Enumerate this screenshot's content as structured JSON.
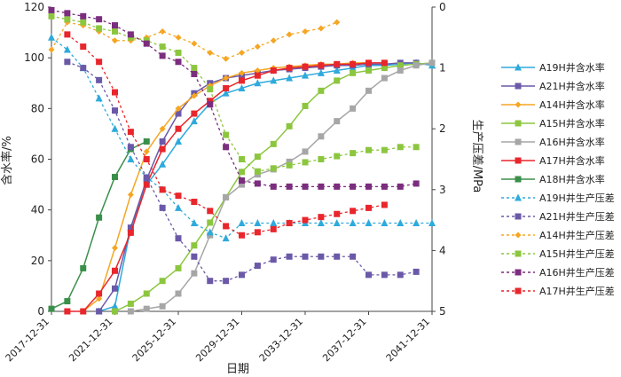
{
  "chart_data": {
    "type": "line",
    "title": "",
    "xlabel": "日期",
    "ylabel_left": "含水率/%",
    "ylabel_right": "生产压差/MPa",
    "x_domain": [
      2017.9,
      2041.9
    ],
    "ylim_left": [
      0,
      120
    ],
    "ylim_right": [
      0,
      5
    ],
    "right_axis_inverted": true,
    "x_ticks": [
      {
        "value": 2017.9,
        "label": "2017-12-31"
      },
      {
        "value": 2021.9,
        "label": "2021-12-31"
      },
      {
        "value": 2025.9,
        "label": "2025-12-31"
      },
      {
        "value": 2029.9,
        "label": "2029-12-31"
      },
      {
        "value": 2033.9,
        "label": "2033-12-31"
      },
      {
        "value": 2037.9,
        "label": "2037-12-31"
      },
      {
        "value": 2041.9,
        "label": "2041-12-31"
      }
    ],
    "y_left_ticks": [
      "0",
      "20",
      "40",
      "60",
      "80",
      "100",
      "120"
    ],
    "y_right_ticks": [
      "0",
      "1",
      "2",
      "3",
      "4",
      "5"
    ],
    "grid": false,
    "legend_position": "right",
    "series": [
      {
        "name": "A19H井含水率",
        "axis": "left",
        "color": "#2eaadc",
        "marker": "triangle",
        "dashed": false,
        "points": [
          [
            2020.9,
            0
          ],
          [
            2021.9,
            2
          ],
          [
            2022.9,
            33
          ],
          [
            2023.9,
            50
          ],
          [
            2024.9,
            58
          ],
          [
            2025.9,
            67
          ],
          [
            2026.9,
            75
          ],
          [
            2027.9,
            82
          ],
          [
            2028.9,
            86
          ],
          [
            2029.9,
            88
          ],
          [
            2030.9,
            90
          ],
          [
            2031.9,
            91
          ],
          [
            2032.9,
            92
          ],
          [
            2033.9,
            93
          ],
          [
            2034.9,
            94
          ],
          [
            2035.9,
            95
          ],
          [
            2036.9,
            96
          ],
          [
            2037.9,
            97
          ],
          [
            2038.9,
            97
          ],
          [
            2039.9,
            97.5
          ],
          [
            2040.9,
            98
          ],
          [
            2041.9,
            97
          ]
        ]
      },
      {
        "name": "A21H井含水率",
        "axis": "left",
        "color": "#6b59a8",
        "marker": "square",
        "dashed": false,
        "points": [
          [
            2020.9,
            0
          ],
          [
            2021.9,
            9
          ],
          [
            2022.9,
            33
          ],
          [
            2023.9,
            52
          ],
          [
            2024.9,
            67
          ],
          [
            2025.9,
            78
          ],
          [
            2026.9,
            86
          ],
          [
            2027.9,
            90
          ],
          [
            2028.9,
            92
          ],
          [
            2029.9,
            93
          ],
          [
            2030.9,
            94
          ],
          [
            2031.9,
            95
          ],
          [
            2032.9,
            95.5
          ],
          [
            2033.9,
            96
          ],
          [
            2034.9,
            96.5
          ],
          [
            2035.9,
            97
          ],
          [
            2036.9,
            97
          ],
          [
            2037.9,
            97.5
          ],
          [
            2038.9,
            97.5
          ],
          [
            2039.9,
            98
          ],
          [
            2040.9,
            98
          ]
        ]
      },
      {
        "name": "A14H井含水率",
        "axis": "left",
        "color": "#f5a623",
        "marker": "diamond",
        "dashed": false,
        "points": [
          [
            2019.9,
            0
          ],
          [
            2020.9,
            5
          ],
          [
            2021.9,
            25
          ],
          [
            2022.9,
            46
          ],
          [
            2023.9,
            63
          ],
          [
            2024.9,
            72
          ],
          [
            2025.9,
            80
          ],
          [
            2026.9,
            85
          ],
          [
            2027.9,
            89
          ],
          [
            2028.9,
            92
          ],
          [
            2029.9,
            94
          ],
          [
            2030.9,
            95
          ],
          [
            2031.9,
            96
          ],
          [
            2032.9,
            96.5
          ],
          [
            2033.9,
            97
          ],
          [
            2034.9,
            97.5
          ],
          [
            2035.9,
            97.5
          ],
          [
            2036.9,
            98
          ],
          [
            2037.9,
            98
          ]
        ]
      },
      {
        "name": "A15H井含水率",
        "axis": "left",
        "color": "#8cc63f",
        "marker": "square",
        "dashed": false,
        "points": [
          [
            2021.9,
            0
          ],
          [
            2022.9,
            3
          ],
          [
            2023.9,
            7
          ],
          [
            2024.9,
            12
          ],
          [
            2025.9,
            17
          ],
          [
            2026.9,
            26
          ],
          [
            2027.9,
            35
          ],
          [
            2028.9,
            45
          ],
          [
            2029.9,
            55
          ],
          [
            2030.9,
            61
          ],
          [
            2031.9,
            66
          ],
          [
            2032.9,
            73
          ],
          [
            2033.9,
            81
          ],
          [
            2034.9,
            87
          ],
          [
            2035.9,
            91
          ],
          [
            2036.9,
            94
          ],
          [
            2037.9,
            95
          ],
          [
            2038.9,
            96
          ],
          [
            2039.9,
            97
          ],
          [
            2040.9,
            97.5
          ],
          [
            2041.9,
            98
          ]
        ]
      },
      {
        "name": "A16H井含水率",
        "axis": "left",
        "color": "#a6a6a6",
        "marker": "square",
        "dashed": false,
        "points": [
          [
            2022.9,
            0
          ],
          [
            2023.9,
            1
          ],
          [
            2024.9,
            2
          ],
          [
            2025.9,
            7
          ],
          [
            2026.9,
            15
          ],
          [
            2027.9,
            30
          ],
          [
            2028.9,
            45
          ],
          [
            2029.9,
            50
          ],
          [
            2030.9,
            54
          ],
          [
            2031.9,
            56
          ],
          [
            2032.9,
            59
          ],
          [
            2033.9,
            63
          ],
          [
            2034.9,
            69
          ],
          [
            2035.9,
            75
          ],
          [
            2036.9,
            80
          ],
          [
            2037.9,
            87
          ],
          [
            2038.9,
            92
          ],
          [
            2039.9,
            95
          ],
          [
            2040.9,
            97
          ],
          [
            2041.9,
            98
          ]
        ]
      },
      {
        "name": "A17H井含水率",
        "axis": "left",
        "color": "#e8262c",
        "marker": "square",
        "dashed": false,
        "points": [
          [
            2018.9,
            0
          ],
          [
            2019.9,
            0
          ],
          [
            2020.9,
            7
          ],
          [
            2021.9,
            16
          ],
          [
            2022.9,
            31
          ],
          [
            2023.9,
            50
          ],
          [
            2024.9,
            64
          ],
          [
            2025.9,
            72
          ],
          [
            2026.9,
            78
          ],
          [
            2027.9,
            83
          ],
          [
            2028.9,
            88
          ],
          [
            2029.9,
            91
          ],
          [
            2030.9,
            93
          ],
          [
            2031.9,
            95
          ],
          [
            2032.9,
            96
          ],
          [
            2033.9,
            96.5
          ],
          [
            2034.9,
            97
          ],
          [
            2035.9,
            97.5
          ],
          [
            2036.9,
            97.5
          ],
          [
            2037.9,
            98
          ],
          [
            2038.9,
            98
          ]
        ]
      },
      {
        "name": "A18H井含水率",
        "axis": "left",
        "color": "#3a8f4a",
        "marker": "square",
        "dashed": false,
        "points": [
          [
            2017.9,
            1
          ],
          [
            2018.9,
            4
          ],
          [
            2019.9,
            17
          ],
          [
            2020.9,
            37
          ],
          [
            2021.9,
            53
          ],
          [
            2022.9,
            64
          ],
          [
            2023.9,
            67
          ]
        ]
      },
      {
        "name": "A19H井生产压差",
        "axis": "right",
        "color": "#2eaadc",
        "marker": "triangle",
        "dashed": true,
        "points": [
          [
            2017.9,
            0.5
          ],
          [
            2018.9,
            0.7
          ],
          [
            2019.9,
            1.0
          ],
          [
            2020.9,
            1.5
          ],
          [
            2021.9,
            2.0
          ],
          [
            2022.9,
            2.5
          ],
          [
            2023.9,
            2.8
          ],
          [
            2024.9,
            3.0
          ],
          [
            2025.9,
            3.3
          ],
          [
            2026.9,
            3.55
          ],
          [
            2027.9,
            3.7
          ],
          [
            2028.9,
            3.8
          ],
          [
            2029.9,
            3.55
          ],
          [
            2030.9,
            3.55
          ],
          [
            2031.9,
            3.55
          ],
          [
            2032.9,
            3.55
          ],
          [
            2033.9,
            3.55
          ],
          [
            2034.9,
            3.55
          ],
          [
            2035.9,
            3.55
          ],
          [
            2036.9,
            3.55
          ],
          [
            2037.9,
            3.55
          ],
          [
            2038.9,
            3.55
          ],
          [
            2039.9,
            3.55
          ],
          [
            2040.9,
            3.55
          ],
          [
            2041.9,
            3.55
          ]
        ]
      },
      {
        "name": "A21H井生产压差",
        "axis": "right",
        "color": "#6b59a8",
        "marker": "square",
        "dashed": true,
        "points": [
          [
            2018.9,
            0.9
          ],
          [
            2019.9,
            1.0
          ],
          [
            2020.9,
            1.2
          ],
          [
            2021.9,
            1.7
          ],
          [
            2022.9,
            2.3
          ],
          [
            2023.9,
            2.8
          ],
          [
            2024.9,
            3.3
          ],
          [
            2025.9,
            3.8
          ],
          [
            2026.9,
            4.1
          ],
          [
            2027.9,
            4.5
          ],
          [
            2028.9,
            4.5
          ],
          [
            2029.9,
            4.4
          ],
          [
            2030.9,
            4.25
          ],
          [
            2031.9,
            4.15
          ],
          [
            2032.9,
            4.1
          ],
          [
            2033.9,
            4.1
          ],
          [
            2034.9,
            4.1
          ],
          [
            2035.9,
            4.1
          ],
          [
            2036.9,
            4.1
          ],
          [
            2037.9,
            4.4
          ],
          [
            2038.9,
            4.4
          ],
          [
            2039.9,
            4.4
          ],
          [
            2040.9,
            4.35
          ]
        ]
      },
      {
        "name": "A14H井生产压差",
        "axis": "right",
        "color": "#f5a623",
        "marker": "diamond",
        "dashed": true,
        "points": [
          [
            2017.9,
            0.7
          ],
          [
            2018.9,
            0.25
          ],
          [
            2019.9,
            0.3
          ],
          [
            2020.9,
            0.4
          ],
          [
            2021.9,
            0.55
          ],
          [
            2022.9,
            0.55
          ],
          [
            2023.9,
            0.5
          ],
          [
            2024.9,
            0.4
          ],
          [
            2025.9,
            0.5
          ],
          [
            2026.9,
            0.6
          ],
          [
            2027.9,
            0.75
          ],
          [
            2028.9,
            0.85
          ],
          [
            2029.9,
            0.75
          ],
          [
            2030.9,
            0.65
          ],
          [
            2031.9,
            0.55
          ],
          [
            2032.9,
            0.45
          ],
          [
            2033.9,
            0.4
          ],
          [
            2034.9,
            0.35
          ],
          [
            2035.9,
            0.25
          ]
        ]
      },
      {
        "name": "A15H井生产压差",
        "axis": "right",
        "color": "#8cc63f",
        "marker": "square",
        "dashed": true,
        "points": [
          [
            2017.9,
            0.15
          ],
          [
            2018.9,
            0.2
          ],
          [
            2019.9,
            0.25
          ],
          [
            2020.9,
            0.35
          ],
          [
            2021.9,
            0.4
          ],
          [
            2022.9,
            0.5
          ],
          [
            2023.9,
            0.55
          ],
          [
            2024.9,
            0.65
          ],
          [
            2025.9,
            0.75
          ],
          [
            2026.9,
            1.0
          ],
          [
            2027.9,
            1.35
          ],
          [
            2028.9,
            2.1
          ],
          [
            2029.9,
            2.5
          ],
          [
            2030.9,
            2.7
          ],
          [
            2031.9,
            2.65
          ],
          [
            2032.9,
            2.6
          ],
          [
            2033.9,
            2.55
          ],
          [
            2034.9,
            2.5
          ],
          [
            2035.9,
            2.45
          ],
          [
            2036.9,
            2.4
          ],
          [
            2037.9,
            2.35
          ],
          [
            2038.9,
            2.35
          ],
          [
            2039.9,
            2.3
          ],
          [
            2040.9,
            2.3
          ]
        ]
      },
      {
        "name": "A16H井生产压差",
        "axis": "right",
        "color": "#7b2d7e",
        "marker": "square",
        "dashed": true,
        "points": [
          [
            2017.9,
            0.05
          ],
          [
            2018.9,
            0.1
          ],
          [
            2019.9,
            0.15
          ],
          [
            2020.9,
            0.2
          ],
          [
            2021.9,
            0.3
          ],
          [
            2022.9,
            0.45
          ],
          [
            2023.9,
            0.6
          ],
          [
            2024.9,
            0.8
          ],
          [
            2025.9,
            0.9
          ],
          [
            2026.9,
            1.1
          ],
          [
            2027.9,
            1.6
          ],
          [
            2028.9,
            2.3
          ],
          [
            2029.9,
            2.85
          ],
          [
            2030.9,
            2.9
          ],
          [
            2031.9,
            2.95
          ],
          [
            2032.9,
            2.95
          ],
          [
            2033.9,
            2.95
          ],
          [
            2034.9,
            2.95
          ],
          [
            2035.9,
            2.95
          ],
          [
            2036.9,
            2.95
          ],
          [
            2037.9,
            2.95
          ],
          [
            2038.9,
            2.95
          ],
          [
            2039.9,
            2.95
          ],
          [
            2040.9,
            2.9
          ]
        ]
      },
      {
        "name": "A17H井生产压差",
        "axis": "right",
        "color": "#e8262c",
        "marker": "square",
        "dashed": true,
        "points": [
          [
            2018.9,
            0.45
          ],
          [
            2019.9,
            0.65
          ],
          [
            2020.9,
            0.9
          ],
          [
            2021.9,
            1.4
          ],
          [
            2022.9,
            2.05
          ],
          [
            2023.9,
            2.5
          ],
          [
            2024.9,
            3.0
          ],
          [
            2025.9,
            3.1
          ],
          [
            2026.9,
            3.2
          ],
          [
            2027.9,
            3.35
          ],
          [
            2028.9,
            3.6
          ],
          [
            2029.9,
            3.75
          ],
          [
            2030.9,
            3.7
          ],
          [
            2031.9,
            3.65
          ],
          [
            2032.9,
            3.55
          ],
          [
            2033.9,
            3.5
          ],
          [
            2034.9,
            3.45
          ],
          [
            2035.9,
            3.4
          ],
          [
            2036.9,
            3.35
          ],
          [
            2037.9,
            3.3
          ],
          [
            2038.9,
            3.25
          ]
        ]
      }
    ]
  }
}
